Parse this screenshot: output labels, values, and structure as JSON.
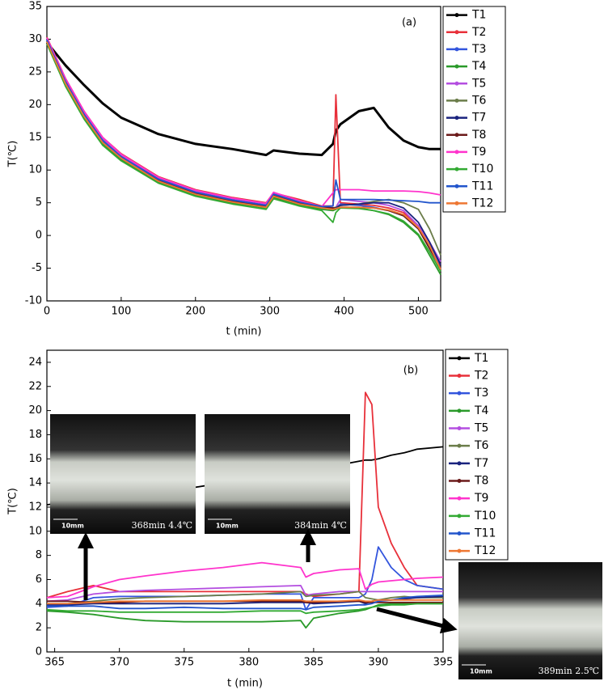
{
  "chart_data": [
    {
      "type": "line",
      "annotation": "(a)",
      "x_label": "t (min)",
      "y_label": "T(℃)",
      "xlim": [
        0,
        530
      ],
      "xticks": [
        0,
        100,
        200,
        300,
        400,
        500
      ],
      "ylim": [
        -10,
        35
      ],
      "yticks": [
        -10,
        -5,
        0,
        5,
        10,
        15,
        20,
        25,
        30,
        35
      ],
      "x": [
        0,
        25,
        50,
        75,
        100,
        150,
        200,
        250,
        295,
        305,
        340,
        370,
        385,
        389,
        395,
        420,
        440,
        460,
        480,
        500,
        515,
        530
      ],
      "series": [
        {
          "name": "T1",
          "color": "#000000",
          "values": [
            29.5,
            26,
            23,
            20.2,
            18,
            15.5,
            14,
            13.2,
            12.3,
            13,
            12.5,
            12.3,
            14,
            16,
            17,
            19,
            19.5,
            16.5,
            14.5,
            13.5,
            13.2,
            13.2
          ]
        },
        {
          "name": "T2",
          "color": "#e8303a",
          "values": [
            30.3,
            24,
            19,
            15,
            12.5,
            9,
            7,
            5.8,
            5,
            6.5,
            5.5,
            4.5,
            4.5,
            21.5,
            5,
            4.8,
            4.6,
            4.2,
            3.5,
            1.5,
            -1,
            -4.5
          ]
        },
        {
          "name": "T3",
          "color": "#3355dd",
          "values": [
            30,
            23.6,
            18.6,
            14.6,
            12.1,
            8.6,
            6.6,
            5.4,
            4.6,
            6.3,
            5.1,
            4.3,
            4,
            4.2,
            4.8,
            4.6,
            4.3,
            3.8,
            3,
            1,
            -1.5,
            -5
          ]
        },
        {
          "name": "T4",
          "color": "#2a9a2a",
          "values": [
            29.5,
            23,
            18,
            14,
            11.6,
            8.2,
            6.2,
            5,
            4.2,
            5.8,
            4.7,
            4,
            3.8,
            4,
            4.3,
            4.2,
            3.8,
            3.2,
            2,
            0,
            -3,
            -6
          ]
        },
        {
          "name": "T5",
          "color": "#b44ee0",
          "values": [
            30,
            23.8,
            18.8,
            14.8,
            12.3,
            8.8,
            6.8,
            5.6,
            4.8,
            6.5,
            5.2,
            4.4,
            4.2,
            4.3,
            5.5,
            5.2,
            5,
            4.6,
            3.8,
            1.5,
            -1,
            -4
          ]
        },
        {
          "name": "T6",
          "color": "#6b7d4a",
          "values": [
            29.8,
            23.4,
            18.4,
            14.4,
            12,
            8.5,
            6.5,
            5.3,
            4.5,
            6.2,
            5,
            4.3,
            4.2,
            4.3,
            4.6,
            4.8,
            5.2,
            5.5,
            5,
            4,
            1,
            -3
          ]
        },
        {
          "name": "T7",
          "color": "#1a237e",
          "values": [
            30,
            23.5,
            18.5,
            14.5,
            12,
            8.6,
            6.6,
            5.4,
            4.6,
            6.3,
            5.1,
            4.4,
            4.2,
            4.2,
            4.6,
            4.8,
            5,
            5,
            4.2,
            2,
            -1,
            -4.5
          ]
        },
        {
          "name": "T8",
          "color": "#6b1a1a",
          "values": [
            29.7,
            23.3,
            18.3,
            14.3,
            11.9,
            8.4,
            6.4,
            5.2,
            4.4,
            6.1,
            4.9,
            4.2,
            4.2,
            4.1,
            4.3,
            4.3,
            4.2,
            3.8,
            3,
            1,
            -2,
            -5
          ]
        },
        {
          "name": "T9",
          "color": "#ff33cc",
          "values": [
            30.2,
            24,
            19,
            15,
            12.4,
            8.9,
            6.9,
            5.7,
            4.9,
            6.6,
            5.3,
            4.4,
            6.5,
            7,
            7,
            7,
            6.8,
            6.8,
            6.8,
            6.7,
            6.5,
            6.2
          ]
        },
        {
          "name": "T10",
          "color": "#33aa33",
          "values": [
            29.3,
            22.8,
            17.8,
            13.8,
            11.4,
            8,
            6,
            4.8,
            4,
            5.6,
            4.5,
            3.8,
            2,
            3.5,
            4.2,
            4.1,
            3.8,
            3.3,
            2.2,
            0.2,
            -2.5,
            -5.5
          ]
        },
        {
          "name": "T11",
          "color": "#2255cc",
          "values": [
            29.9,
            23.5,
            18.5,
            14.5,
            12,
            8.6,
            6.6,
            5.4,
            4.6,
            6.3,
            5.1,
            4.4,
            4.5,
            8.5,
            5.5,
            5.5,
            5.5,
            5.4,
            5.3,
            5.2,
            5,
            5
          ]
        },
        {
          "name": "T12",
          "color": "#ee7733",
          "values": [
            29.6,
            23.2,
            18.2,
            14.2,
            11.8,
            8.3,
            6.3,
            5.1,
            4.3,
            6,
            4.8,
            4.2,
            4,
            4.1,
            4.3,
            4.3,
            4.2,
            3.9,
            3.2,
            1.2,
            -1.5,
            -5.2
          ]
        }
      ]
    },
    {
      "type": "line",
      "annotation": "(b)",
      "x_label": "t (min)",
      "y_label": "T(℃)",
      "xlim": [
        364.4,
        395
      ],
      "xticks": [
        365,
        370,
        375,
        380,
        385,
        390,
        395
      ],
      "ylim": [
        0,
        25
      ],
      "yticks": [
        0,
        2,
        4,
        6,
        8,
        10,
        12,
        14,
        16,
        18,
        20,
        22,
        24
      ],
      "x": [
        364.4,
        366,
        368,
        370,
        372,
        375,
        378,
        381,
        384,
        384.4,
        385,
        387,
        388.5,
        389,
        389.5,
        390,
        391,
        392,
        393,
        395
      ],
      "series": [
        {
          "name": "T1",
          "color": "#000000",
          "values": [
            12.2,
            12.4,
            12.8,
            13,
            13.2,
            13.5,
            14,
            14.5,
            15,
            15.1,
            15.2,
            15.5,
            15.8,
            15.9,
            15.9,
            16,
            16.3,
            16.5,
            16.8,
            17
          ]
        },
        {
          "name": "T2",
          "color": "#e8303a",
          "values": [
            4.5,
            5,
            5.5,
            5,
            5,
            5,
            5,
            5,
            5,
            4.8,
            4.6,
            4.8,
            5,
            21.5,
            20.5,
            12,
            9,
            7,
            5.5,
            5.2
          ]
        },
        {
          "name": "T3",
          "color": "#3355dd",
          "values": [
            3.7,
            3.8,
            4.5,
            4.6,
            4.6,
            4.6,
            4.7,
            4.8,
            4.8,
            3.5,
            4.5,
            4.5,
            4.5,
            4.8,
            6,
            8.7,
            7,
            6,
            5.5,
            5.2
          ]
        },
        {
          "name": "T4",
          "color": "#2a9a2a",
          "values": [
            3.4,
            3.3,
            3.1,
            2.8,
            2.6,
            2.5,
            2.5,
            2.5,
            2.6,
            2,
            2.8,
            3.2,
            3.4,
            3.5,
            3.7,
            3.9,
            4,
            4,
            4,
            4
          ]
        },
        {
          "name": "T5",
          "color": "#b44ee0",
          "values": [
            4.2,
            4.3,
            4.8,
            5,
            5.1,
            5.2,
            5.3,
            5.4,
            5.5,
            4.7,
            4.8,
            5,
            5,
            5,
            5,
            5,
            5,
            5,
            5,
            5
          ]
        },
        {
          "name": "T6",
          "color": "#6b7d4a",
          "values": [
            4,
            4,
            4.2,
            4.4,
            4.5,
            4.6,
            4.7,
            4.8,
            5,
            4.6,
            4.7,
            4.8,
            5,
            4.5,
            4.4,
            4.3,
            4.5,
            4.6,
            4.5,
            4.5
          ]
        },
        {
          "name": "T7",
          "color": "#1a237e",
          "values": [
            3.9,
            3.9,
            4,
            4,
            4,
            4,
            4,
            4.1,
            4.1,
            4.1,
            4,
            4.1,
            4.2,
            4,
            4.2,
            4.3,
            4.3,
            4.4,
            4.5,
            4.6
          ]
        },
        {
          "name": "T8",
          "color": "#6b1a1a",
          "values": [
            4.2,
            4.2,
            4.1,
            4.1,
            4.2,
            4.2,
            4.2,
            4.2,
            4.2,
            4.1,
            4.1,
            4.2,
            4.2,
            4.1,
            4.1,
            4.1,
            4.1,
            4.1,
            4.1,
            4.1
          ]
        },
        {
          "name": "T9",
          "color": "#ff33cc",
          "values": [
            4.5,
            4.6,
            5.4,
            6,
            6.3,
            6.7,
            7,
            7.4,
            7,
            6.2,
            6.5,
            6.8,
            6.9,
            5.2,
            5.6,
            5.8,
            5.9,
            6,
            6.1,
            6.2
          ]
        },
        {
          "name": "T10",
          "color": "#33aa33",
          "values": [
            3.5,
            3.4,
            3.4,
            3.3,
            3.3,
            3.3,
            3.3,
            3.4,
            3.4,
            3.2,
            3.3,
            3.4,
            3.5,
            3.6,
            3.7,
            3.8,
            3.9,
            3.9,
            4,
            4
          ]
        },
        {
          "name": "T11",
          "color": "#2255cc",
          "values": [
            3.8,
            3.8,
            3.8,
            3.6,
            3.6,
            3.7,
            3.6,
            3.6,
            3.6,
            3.5,
            3.7,
            3.8,
            3.9,
            3.9,
            4,
            4.2,
            4.3,
            4.5,
            4.6,
            4.7
          ]
        },
        {
          "name": "T12",
          "color": "#ee7733",
          "values": [
            4,
            4,
            4.1,
            4.2,
            4.2,
            4.2,
            4.2,
            4.3,
            4.3,
            4.2,
            4.2,
            4.2,
            4.3,
            4.2,
            4.2,
            4.3,
            4.3,
            4.3,
            4.3,
            4.3
          ]
        }
      ],
      "insets": [
        {
          "scale": "10mm",
          "caption": "368min 4.4℃"
        },
        {
          "scale": "10mm",
          "caption": "384min 4℃"
        },
        {
          "scale": "10mm",
          "caption": "389min 2.5℃"
        }
      ]
    }
  ]
}
